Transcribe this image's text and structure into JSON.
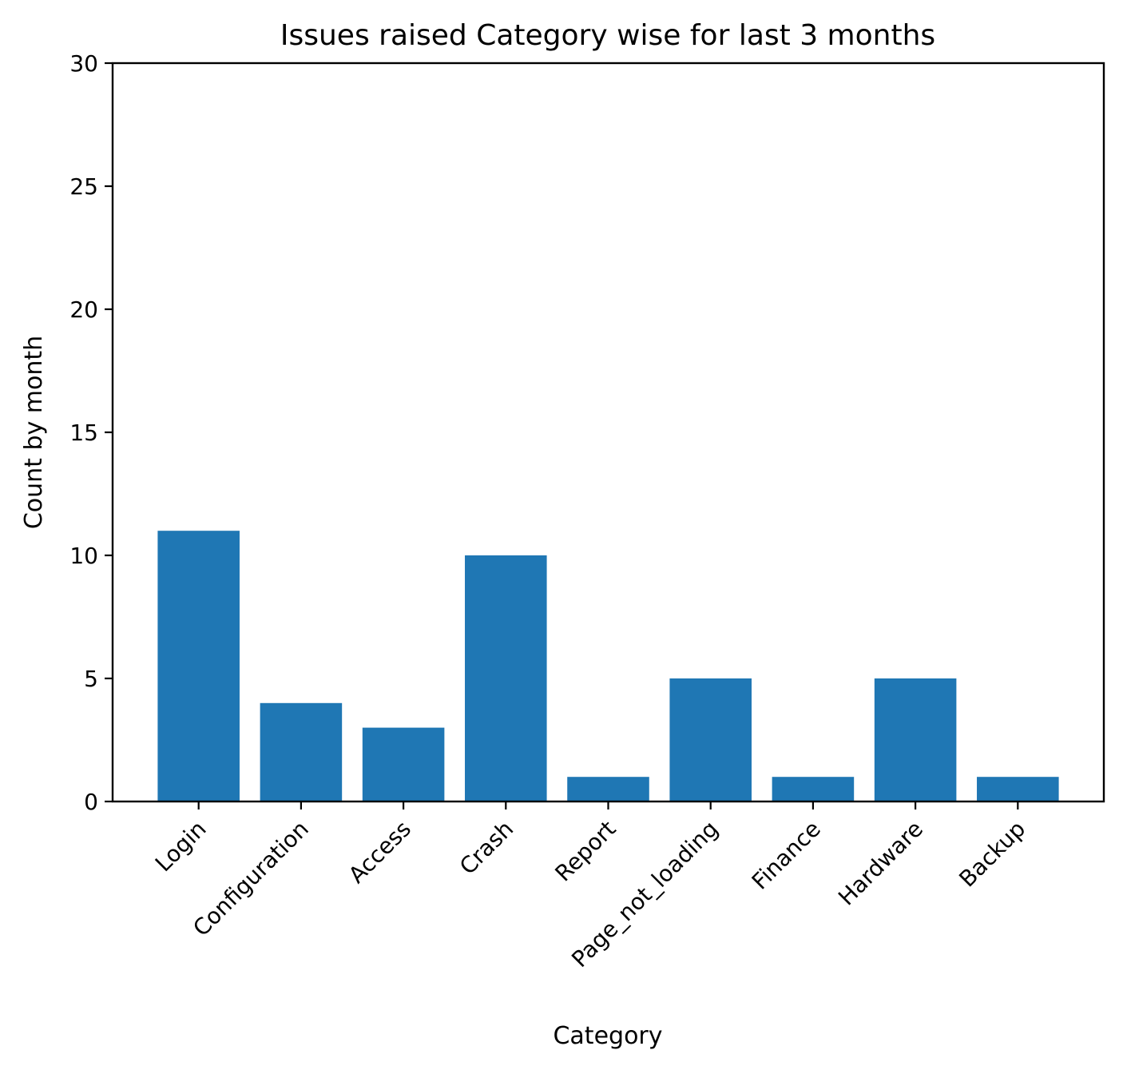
{
  "chart_data": {
    "type": "bar",
    "title": "Issues raised Category wise for last 3 months",
    "xlabel": "Category",
    "ylabel": "Count by month",
    "categories": [
      "Login",
      "Configuration",
      "Access",
      "Crash",
      "Report",
      "Page_not_loading",
      "Finance",
      "Hardware",
      "Backup"
    ],
    "values": [
      11,
      4,
      3,
      10,
      1,
      5,
      1,
      5,
      1
    ],
    "ylim": [
      0,
      30
    ],
    "yticks": [
      0,
      5,
      10,
      15,
      20,
      25,
      30
    ],
    "grid": false,
    "bar_color": "#1f77b4",
    "xtick_rotation_deg": 45
  }
}
